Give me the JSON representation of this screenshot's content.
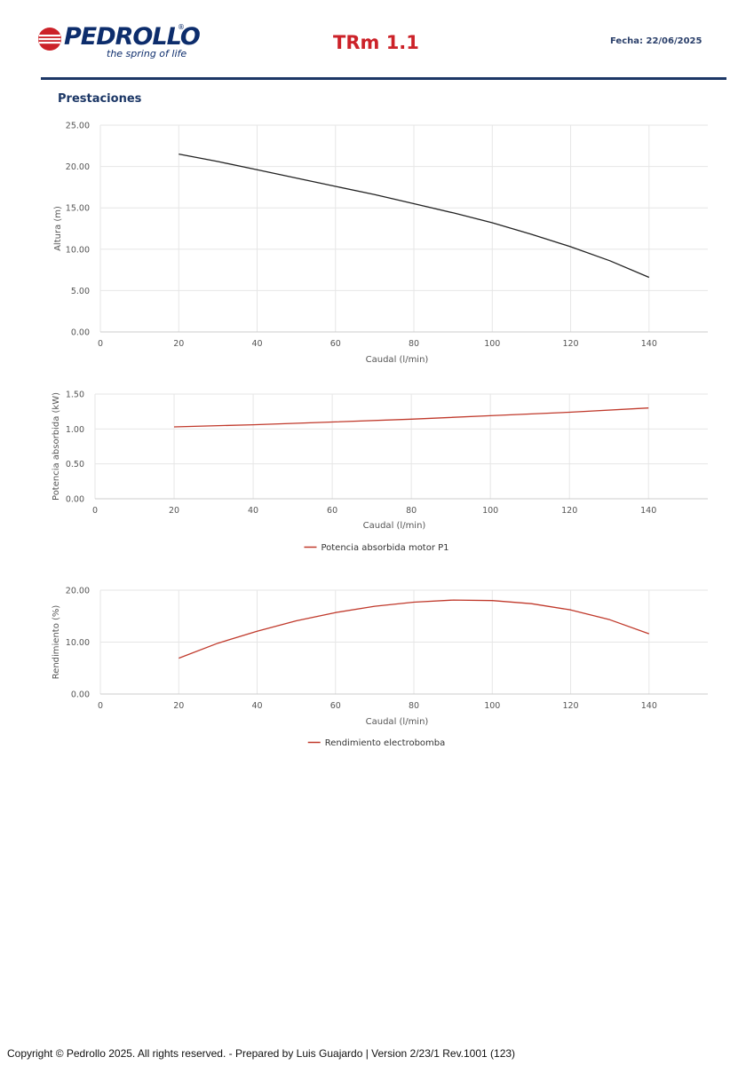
{
  "header": {
    "brand": "PEDROLLO",
    "tagline": "the spring of life",
    "title": "TRm 1.1",
    "date": "Fecha: 22/06/2025"
  },
  "section_title": "Prestaciones",
  "colors": {
    "brand_blue": "#1c3766",
    "brand_red": "#cc2229",
    "height_curve": "#222222",
    "power_curve": "#c0392b",
    "efficiency_curve": "#c0392b",
    "grid": "#e6e6e6"
  },
  "chart_data": [
    {
      "type": "line",
      "xlabel": "Caudal (l/min)",
      "ylabel": "Altura (m)",
      "xlim": [
        0,
        155
      ],
      "ylim": [
        0,
        25
      ],
      "xticks": [
        0,
        20,
        40,
        60,
        80,
        100,
        120,
        140
      ],
      "yticks": [
        "0.00",
        "5.00",
        "10.00",
        "15.00",
        "20.00",
        "25.00"
      ],
      "grid": true,
      "legend": "none",
      "series": [
        {
          "x": [
            20,
            30,
            40,
            50,
            60,
            70,
            80,
            90,
            100,
            110,
            120,
            130,
            140
          ],
          "y": [
            21.5,
            20.6,
            19.6,
            18.6,
            17.6,
            16.6,
            15.5,
            14.4,
            13.2,
            11.8,
            10.3,
            8.6,
            6.6
          ]
        }
      ]
    },
    {
      "type": "line",
      "xlabel": "Caudal (l/min)",
      "ylabel": "Potencia absorbida (kW)",
      "xlim": [
        0,
        155
      ],
      "ylim": [
        0,
        1.5
      ],
      "xticks": [
        0,
        20,
        40,
        60,
        80,
        100,
        120,
        140
      ],
      "yticks": [
        "0.00",
        "0.50",
        "1.00",
        "1.50"
      ],
      "grid": true,
      "legend": "bottom-center",
      "series": [
        {
          "name": "Potencia absorbida motor P1",
          "x": [
            20,
            40,
            60,
            80,
            100,
            120,
            140
          ],
          "y": [
            1.03,
            1.06,
            1.1,
            1.14,
            1.19,
            1.24,
            1.3
          ]
        }
      ]
    },
    {
      "type": "line",
      "xlabel": "Caudal (l/min)",
      "ylabel": "Rendimiento (%)",
      "xlim": [
        0,
        155
      ],
      "ylim": [
        0,
        20
      ],
      "xticks": [
        0,
        20,
        40,
        60,
        80,
        100,
        120,
        140
      ],
      "yticks": [
        "0.00",
        "10.00",
        "20.00"
      ],
      "grid": true,
      "legend": "bottom-center",
      "series": [
        {
          "name": "Rendimiento electrobomba",
          "x": [
            20,
            30,
            40,
            50,
            60,
            70,
            80,
            90,
            100,
            110,
            120,
            130,
            140
          ],
          "y": [
            6.9,
            9.8,
            12.1,
            14.1,
            15.7,
            16.9,
            17.7,
            18.1,
            18.0,
            17.4,
            16.2,
            14.3,
            11.6
          ]
        }
      ]
    }
  ],
  "footer": "Copyright © Pedrollo 2025. All rights reserved. - Prepared by Luis Guajardo | Version 2/23/1 Rev.1001 (123)"
}
